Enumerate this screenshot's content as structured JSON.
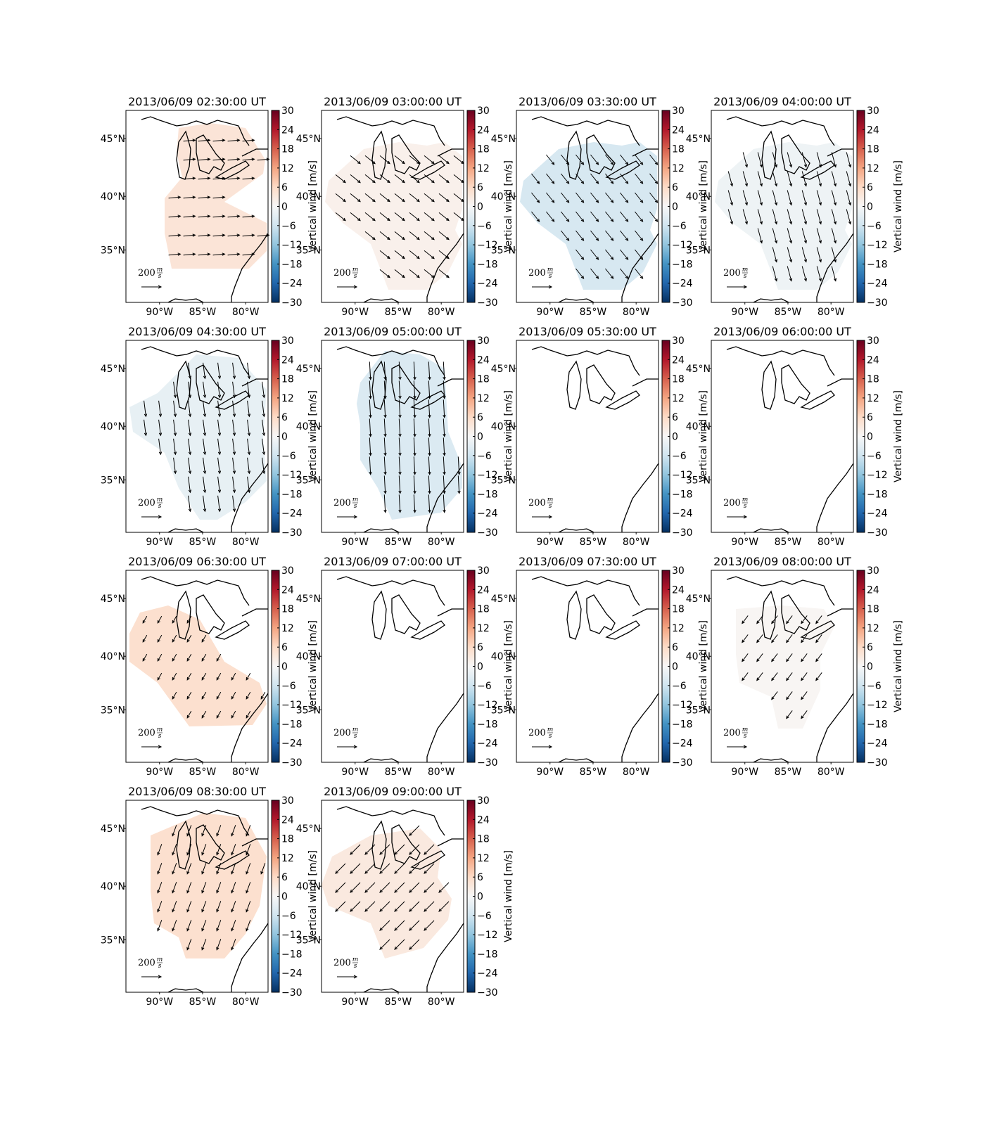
{
  "panels": [
    {
      "title": "2013/06/09 02:30:00 UT",
      "vertical_wind": 4,
      "u": 120,
      "v": 10
    },
    {
      "title": "2013/06/09 03:00:00 UT",
      "vertical_wind": 1.5,
      "u": 100,
      "v": -80
    },
    {
      "title": "2013/06/09 03:30:00 UT",
      "vertical_wind": -5,
      "u": 80,
      "v": -100
    },
    {
      "title": "2013/06/09 04:00:00 UT",
      "vertical_wind": -1.5,
      "u": 40,
      "v": -150
    },
    {
      "title": "2013/06/09 04:30:00 UT",
      "vertical_wind": -2.5,
      "u": 20,
      "v": -160
    },
    {
      "title": "2013/06/09 05:00:00 UT",
      "vertical_wind": -4.5,
      "u": 10,
      "v": -180
    },
    {
      "title": "2013/06/09 05:30:00 UT",
      "vertical_wind": null,
      "u": null,
      "v": null
    },
    {
      "title": "2013/06/09 06:00:00 UT",
      "vertical_wind": null,
      "u": null,
      "v": null
    },
    {
      "title": "2013/06/09 06:30:00 UT",
      "vertical_wind": 5,
      "u": -40,
      "v": -70
    },
    {
      "title": "2013/06/09 07:00:00 UT",
      "vertical_wind": null,
      "u": null,
      "v": null
    },
    {
      "title": "2013/06/09 07:30:00 UT",
      "vertical_wind": null,
      "u": null,
      "v": null
    },
    {
      "title": "2013/06/09 08:00:00 UT",
      "vertical_wind": 0.5,
      "u": -60,
      "v": -80
    },
    {
      "title": "2013/06/09 08:30:00 UT",
      "vertical_wind": 5,
      "u": -40,
      "v": -110
    },
    {
      "title": "2013/06/09 09:00:00 UT",
      "vertical_wind": 3,
      "u": -100,
      "v": -100
    }
  ],
  "xlim": [
    -93.9,
    -77.4
  ],
  "ylim": [
    29.8,
    47.3
  ],
  "lon_ticks": [
    {
      "value": -90,
      "label": "90°W"
    },
    {
      "value": -85,
      "label": "85°W"
    },
    {
      "value": -80,
      "label": "80°W"
    }
  ],
  "lat_ticks": [
    {
      "value": 45,
      "label": "45°N"
    },
    {
      "value": 40,
      "label": "40°N"
    },
    {
      "value": 35,
      "label": "35°N"
    }
  ],
  "colorbar_label": "Vertical wind [m/s]",
  "colorbar_lim": [
    -30,
    30
  ],
  "colorbar_ticks": [
    {
      "value": 30,
      "label": "30"
    },
    {
      "value": 24,
      "label": "24"
    },
    {
      "value": 18,
      "label": "18"
    },
    {
      "value": 12,
      "label": "12"
    },
    {
      "value": 6,
      "label": "6"
    },
    {
      "value": 0,
      "label": "0"
    },
    {
      "value": -6,
      "label": "−6"
    },
    {
      "value": -12,
      "label": "−12"
    },
    {
      "value": -18,
      "label": "−18"
    },
    {
      "value": -24,
      "label": "−24"
    },
    {
      "value": -30,
      "label": "−30"
    }
  ],
  "quiver_key": {
    "value": 200,
    "unit_num": "m",
    "unit_den": "s"
  }
}
